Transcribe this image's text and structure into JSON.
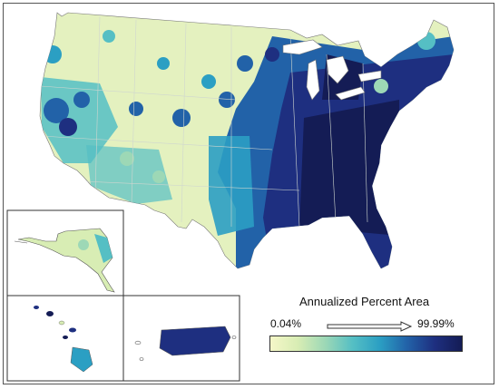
{
  "legend": {
    "title": "Annualized Percent Area",
    "min_label": "0.04%",
    "max_label": "99.99%",
    "colors": [
      "#f5f7c8",
      "#d8edb4",
      "#9dd8b6",
      "#55bfc4",
      "#2b9fc3",
      "#2262a8",
      "#1e2f80",
      "#141c55"
    ]
  },
  "map": {
    "regions_shown": [
      "Contiguous United States",
      "Alaska",
      "Hawaii",
      "Puerto Rico"
    ],
    "color_low": "#f5f7c8",
    "color_high": "#141c55"
  }
}
